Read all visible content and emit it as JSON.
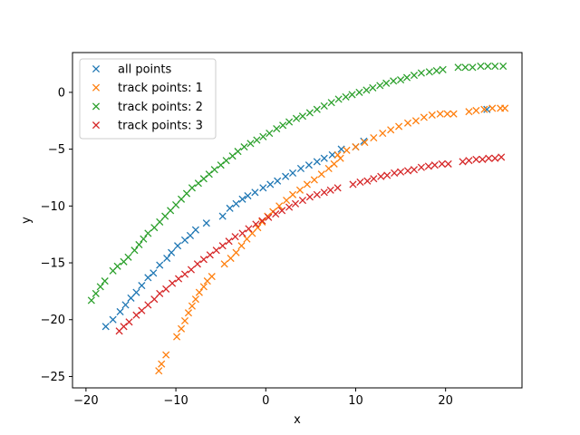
{
  "chart_data": {
    "type": "scatter",
    "title": "",
    "xlabel": "x",
    "ylabel": "y",
    "xlim": [
      -21.5,
      28.5
    ],
    "ylim": [
      -26.0,
      3.5
    ],
    "xticks": [
      -20,
      -10,
      0,
      10,
      20
    ],
    "yticks": [
      -25,
      -20,
      -15,
      -10,
      -5,
      0
    ],
    "xtick_labels": [
      "−20",
      "−10",
      "0",
      "10",
      "20"
    ],
    "ytick_labels": [
      "−25",
      "−20",
      "−15",
      "−10",
      "−5",
      "0"
    ],
    "grid": false,
    "legend_position": "top-left",
    "marker": "x",
    "series": [
      {
        "name": "all points",
        "color": "#1f77b4",
        "points": [
          [
            -17.8,
            -20.6
          ],
          [
            -17.0,
            -20.0
          ],
          [
            -16.2,
            -19.3
          ],
          [
            -15.6,
            -18.7
          ],
          [
            -15.0,
            -18.1
          ],
          [
            -14.4,
            -17.6
          ],
          [
            -13.8,
            -17.0
          ],
          [
            -13.1,
            -16.3
          ],
          [
            -12.5,
            -15.9
          ],
          [
            -11.8,
            -15.2
          ],
          [
            -11.0,
            -14.6
          ],
          [
            -10.5,
            -14.1
          ],
          [
            -9.8,
            -13.5
          ],
          [
            -9.0,
            -13.0
          ],
          [
            -8.4,
            -12.6
          ],
          [
            -7.8,
            -12.1
          ],
          [
            -6.6,
            -11.5
          ],
          [
            -4.8,
            -10.9
          ],
          [
            -4.0,
            -10.2
          ],
          [
            -3.3,
            -9.8
          ],
          [
            -2.6,
            -9.4
          ],
          [
            -2.0,
            -9.1
          ],
          [
            -1.2,
            -8.8
          ],
          [
            -0.3,
            -8.4
          ],
          [
            0.5,
            -8.1
          ],
          [
            1.3,
            -7.8
          ],
          [
            2.2,
            -7.4
          ],
          [
            3.0,
            -7.1
          ],
          [
            3.9,
            -6.7
          ],
          [
            4.8,
            -6.4
          ],
          [
            5.7,
            -6.1
          ],
          [
            6.5,
            -5.8
          ],
          [
            7.4,
            -5.5
          ],
          [
            8.4,
            -5.0
          ],
          [
            10.0,
            -4.8
          ],
          [
            10.9,
            -4.3
          ],
          [
            24.6,
            -1.5
          ]
        ]
      },
      {
        "name": "track points: 1",
        "color": "#ff7f0e",
        "points": [
          [
            -11.9,
            -24.5
          ],
          [
            -11.6,
            -23.9
          ],
          [
            -11.1,
            -23.1
          ],
          [
            -9.9,
            -21.5
          ],
          [
            -9.4,
            -20.8
          ],
          [
            -9.0,
            -20.1
          ],
          [
            -8.6,
            -19.4
          ],
          [
            -8.2,
            -18.8
          ],
          [
            -7.8,
            -18.2
          ],
          [
            -7.4,
            -17.6
          ],
          [
            -6.9,
            -17.1
          ],
          [
            -6.5,
            -16.6
          ],
          [
            -6.0,
            -16.2
          ],
          [
            -4.6,
            -15.1
          ],
          [
            -3.9,
            -14.6
          ],
          [
            -3.3,
            -14.1
          ],
          [
            -2.7,
            -13.5
          ],
          [
            -2.1,
            -12.9
          ],
          [
            -1.5,
            -12.4
          ],
          [
            -0.9,
            -11.9
          ],
          [
            -0.4,
            -11.4
          ],
          [
            0.2,
            -10.9
          ],
          [
            0.8,
            -10.5
          ],
          [
            1.5,
            -10.0
          ],
          [
            2.3,
            -9.5
          ],
          [
            3.0,
            -9.0
          ],
          [
            3.8,
            -8.6
          ],
          [
            4.6,
            -8.1
          ],
          [
            5.4,
            -7.7
          ],
          [
            6.2,
            -7.2
          ],
          [
            7.0,
            -6.7
          ],
          [
            7.6,
            -6.3
          ],
          [
            8.3,
            -5.8
          ],
          [
            8.0,
            -5.5
          ],
          [
            9.0,
            -5.1
          ],
          [
            10.0,
            -4.8
          ],
          [
            11.0,
            -4.4
          ],
          [
            12.0,
            -4.0
          ],
          [
            13.0,
            -3.6
          ],
          [
            13.9,
            -3.3
          ],
          [
            14.8,
            -3.0
          ],
          [
            15.8,
            -2.7
          ],
          [
            16.7,
            -2.5
          ],
          [
            17.6,
            -2.2
          ],
          [
            18.5,
            -2.0
          ],
          [
            19.4,
            -1.9
          ],
          [
            20.2,
            -1.9
          ],
          [
            20.9,
            -1.9
          ],
          [
            22.6,
            -1.7
          ],
          [
            23.4,
            -1.6
          ],
          [
            24.3,
            -1.5
          ],
          [
            25.2,
            -1.4
          ],
          [
            26.1,
            -1.4
          ],
          [
            26.6,
            -1.4
          ]
        ]
      },
      {
        "name": "track points: 2",
        "color": "#2ca02c",
        "points": [
          [
            -19.4,
            -18.3
          ],
          [
            -18.9,
            -17.7
          ],
          [
            -18.4,
            -17.1
          ],
          [
            -17.9,
            -16.6
          ],
          [
            -17.0,
            -15.7
          ],
          [
            -16.5,
            -15.3
          ],
          [
            -15.8,
            -14.9
          ],
          [
            -15.3,
            -14.5
          ],
          [
            -14.6,
            -13.9
          ],
          [
            -14.1,
            -13.4
          ],
          [
            -13.6,
            -12.9
          ],
          [
            -13.1,
            -12.4
          ],
          [
            -12.4,
            -11.9
          ],
          [
            -11.8,
            -11.4
          ],
          [
            -11.2,
            -10.9
          ],
          [
            -10.6,
            -10.4
          ],
          [
            -10.0,
            -9.9
          ],
          [
            -9.4,
            -9.4
          ],
          [
            -8.8,
            -8.9
          ],
          [
            -8.2,
            -8.4
          ],
          [
            -7.5,
            -8.0
          ],
          [
            -6.9,
            -7.6
          ],
          [
            -6.3,
            -7.2
          ],
          [
            -5.7,
            -6.8
          ],
          [
            -5.0,
            -6.4
          ],
          [
            -4.4,
            -6.0
          ],
          [
            -3.7,
            -5.6
          ],
          [
            -3.1,
            -5.2
          ],
          [
            -2.4,
            -4.8
          ],
          [
            -1.7,
            -4.5
          ],
          [
            -1.0,
            -4.2
          ],
          [
            -0.3,
            -3.9
          ],
          [
            0.4,
            -3.6
          ],
          [
            1.2,
            -3.2
          ],
          [
            1.9,
            -2.9
          ],
          [
            2.6,
            -2.6
          ],
          [
            3.4,
            -2.3
          ],
          [
            4.1,
            -2.1
          ],
          [
            4.9,
            -1.8
          ],
          [
            5.7,
            -1.5
          ],
          [
            6.5,
            -1.2
          ],
          [
            7.3,
            -0.9
          ],
          [
            8.1,
            -0.6
          ],
          [
            8.9,
            -0.4
          ],
          [
            9.6,
            -0.2
          ],
          [
            10.4,
            0.0
          ],
          [
            11.2,
            0.2
          ],
          [
            11.9,
            0.4
          ],
          [
            12.7,
            0.6
          ],
          [
            13.4,
            0.8
          ],
          [
            14.2,
            1.0
          ],
          [
            15.0,
            1.1
          ],
          [
            15.7,
            1.3
          ],
          [
            16.5,
            1.5
          ],
          [
            17.3,
            1.7
          ],
          [
            18.2,
            1.8
          ],
          [
            19.0,
            1.9
          ],
          [
            19.7,
            2.0
          ],
          [
            21.4,
            2.2
          ],
          [
            22.2,
            2.2
          ],
          [
            23.0,
            2.2
          ],
          [
            23.9,
            2.3
          ],
          [
            24.7,
            2.3
          ],
          [
            25.5,
            2.3
          ],
          [
            26.4,
            2.3
          ]
        ]
      },
      {
        "name": "track points: 3",
        "color": "#d62728",
        "points": [
          [
            -16.3,
            -21.0
          ],
          [
            -15.8,
            -20.6
          ],
          [
            -15.2,
            -20.2
          ],
          [
            -14.4,
            -19.6
          ],
          [
            -13.8,
            -19.2
          ],
          [
            -13.1,
            -18.7
          ],
          [
            -12.4,
            -18.2
          ],
          [
            -11.8,
            -17.7
          ],
          [
            -11.1,
            -17.3
          ],
          [
            -10.4,
            -16.8
          ],
          [
            -9.7,
            -16.4
          ],
          [
            -9.0,
            -16.0
          ],
          [
            -8.3,
            -15.6
          ],
          [
            -7.6,
            -15.1
          ],
          [
            -6.9,
            -14.7
          ],
          [
            -6.2,
            -14.3
          ],
          [
            -5.5,
            -13.9
          ],
          [
            -4.8,
            -13.5
          ],
          [
            -4.1,
            -13.1
          ],
          [
            -3.4,
            -12.7
          ],
          [
            -2.6,
            -12.4
          ],
          [
            -1.9,
            -12.0
          ],
          [
            -1.1,
            -11.6
          ],
          [
            -0.4,
            -11.3
          ],
          [
            0.3,
            -11.0
          ],
          [
            1.1,
            -10.7
          ],
          [
            1.8,
            -10.4
          ],
          [
            2.6,
            -10.1
          ],
          [
            3.3,
            -9.8
          ],
          [
            4.1,
            -9.5
          ],
          [
            4.9,
            -9.2
          ],
          [
            5.7,
            -9.0
          ],
          [
            6.5,
            -8.8
          ],
          [
            7.2,
            -8.6
          ],
          [
            8.0,
            -8.4
          ],
          [
            9.7,
            -8.1
          ],
          [
            10.5,
            -7.9
          ],
          [
            11.3,
            -7.8
          ],
          [
            12.0,
            -7.6
          ],
          [
            12.8,
            -7.4
          ],
          [
            13.5,
            -7.3
          ],
          [
            14.3,
            -7.1
          ],
          [
            15.0,
            -7.0
          ],
          [
            15.8,
            -6.9
          ],
          [
            16.5,
            -6.8
          ],
          [
            17.3,
            -6.6
          ],
          [
            18.1,
            -6.5
          ],
          [
            18.8,
            -6.4
          ],
          [
            19.6,
            -6.3
          ],
          [
            20.3,
            -6.3
          ],
          [
            21.9,
            -6.1
          ],
          [
            22.6,
            -6.0
          ],
          [
            23.4,
            -5.9
          ],
          [
            24.1,
            -5.9
          ],
          [
            24.8,
            -5.8
          ],
          [
            25.5,
            -5.8
          ],
          [
            26.2,
            -5.7
          ]
        ]
      }
    ]
  }
}
